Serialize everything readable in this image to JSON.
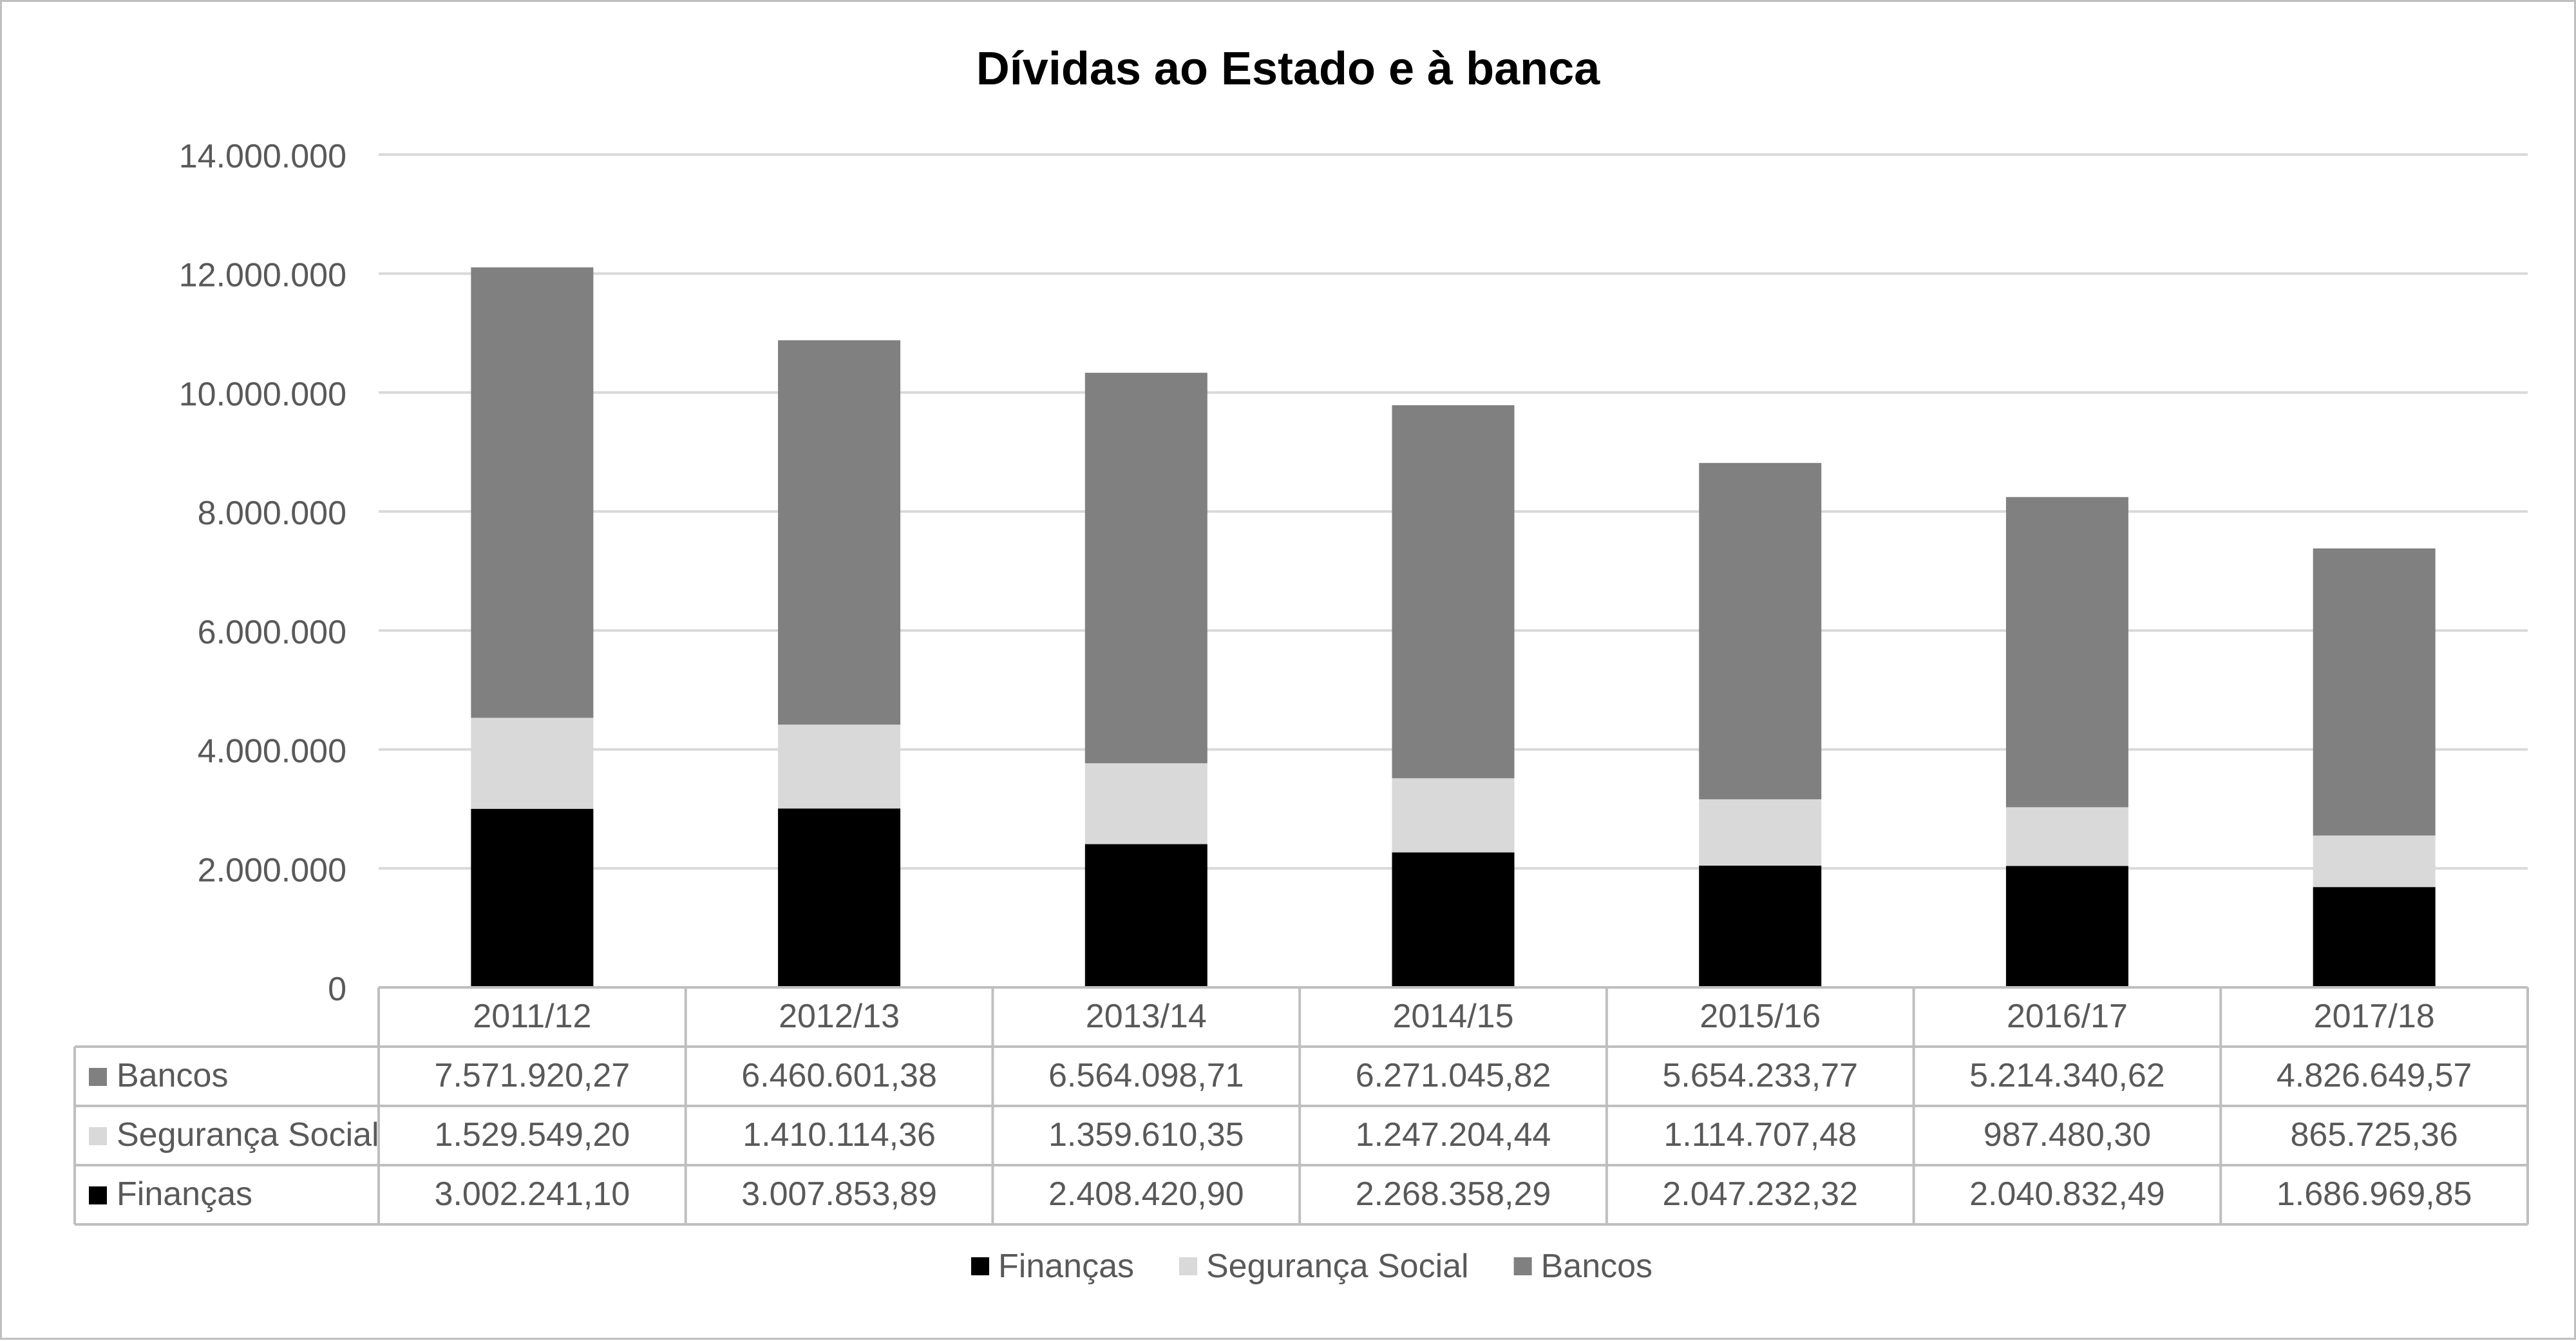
{
  "chart_data": {
    "type": "bar",
    "stacked": true,
    "title": "Dívidas ao Estado e à banca",
    "xlabel": "",
    "ylabel": "",
    "ylim": [
      0,
      14000000
    ],
    "yticks": [
      0,
      2000000,
      4000000,
      6000000,
      8000000,
      10000000,
      12000000,
      14000000
    ],
    "ytick_labels": [
      "0",
      "2.000.000",
      "4.000.000",
      "6.000.000",
      "8.000.000",
      "10.000.000",
      "12.000.000",
      "14.000.000"
    ],
    "grid": true,
    "legend": "bottom",
    "data_table": true,
    "categories": [
      "2011/12",
      "2012/13",
      "2013/14",
      "2014/15",
      "2015/16",
      "2016/17",
      "2017/18"
    ],
    "series": [
      {
        "name": "Finanças",
        "color": "#000000",
        "values": [
          3002241.1,
          3007853.89,
          2408420.9,
          2268358.29,
          2047232.32,
          2040832.49,
          1686969.85
        ],
        "value_labels": [
          "3.002.241,10",
          "3.007.853,89",
          "2.408.420,90",
          "2.268.358,29",
          "2.047.232,32",
          "2.040.832,49",
          "1.686.969,85"
        ]
      },
      {
        "name": "Segurança Social",
        "color": "#d9d9d9",
        "values": [
          1529549.2,
          1410114.36,
          1359610.35,
          1247204.44,
          1114707.48,
          987480.3,
          865725.36
        ],
        "value_labels": [
          "1.529.549,20",
          "1.410.114,36",
          "1.359.610,35",
          "1.247.204,44",
          "1.114.707,48",
          "987.480,30",
          "865.725,36"
        ]
      },
      {
        "name": "Bancos",
        "color": "#808080",
        "values": [
          7571920.27,
          6460601.38,
          6564098.71,
          6271045.82,
          5654233.77,
          5214340.62,
          4826649.57
        ],
        "value_labels": [
          "7.571.920,27",
          "6.460.601,38",
          "6.564.098,71",
          "6.271.045,82",
          "5.654.233,77",
          "5.214.340,62",
          "4.826.649,57"
        ]
      }
    ],
    "table_row_order": [
      "Bancos",
      "Segurança Social",
      "Finanças"
    ],
    "colors": {
      "gridline": "#d9d9d9",
      "table_border": "#bfbfbf",
      "text": "#595959",
      "title": "#000000"
    }
  }
}
